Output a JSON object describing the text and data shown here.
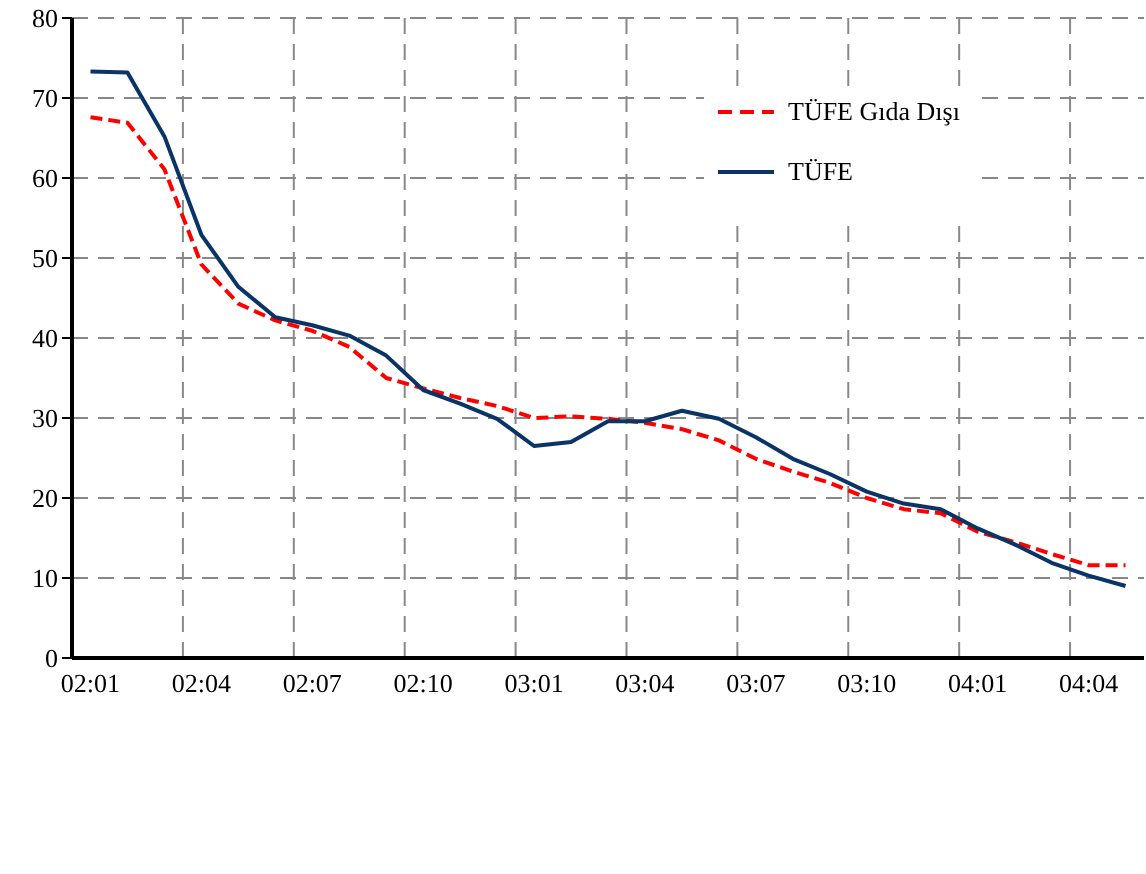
{
  "chart_data": {
    "type": "line",
    "categories": [
      "02:01",
      null,
      null,
      "02:04",
      null,
      null,
      "02:07",
      null,
      null,
      "02:10",
      null,
      null,
      "03:01",
      null,
      null,
      "03:04",
      null,
      null,
      "03:07",
      null,
      null,
      "03:10",
      null,
      null,
      "04:01",
      null,
      null,
      "04:04",
      null
    ],
    "series": [
      {
        "name": "TÜFE Gıda Dışı",
        "color": "#ff0000",
        "line_style": "dashed",
        "values": [
          67.6,
          66.9,
          61.1,
          49.2,
          44.3,
          42.2,
          40.9,
          38.9,
          35.0,
          33.7,
          32.5,
          31.5,
          30.0,
          30.2,
          29.9,
          29.4,
          28.6,
          27.2,
          24.9,
          23.3,
          21.9,
          20.0,
          18.6,
          18.1,
          15.8,
          14.5,
          13.0,
          11.6,
          11.6
        ]
      },
      {
        "name": "TÜFE",
        "color": "#0a3366",
        "line_style": "solid",
        "values": [
          73.3,
          73.2,
          65.2,
          52.9,
          46.4,
          42.6,
          41.6,
          40.3,
          37.8,
          33.5,
          31.8,
          29.9,
          26.5,
          27.0,
          29.6,
          29.6,
          30.9,
          29.9,
          27.6,
          24.9,
          23.0,
          20.8,
          19.3,
          18.6,
          16.2,
          14.2,
          11.9,
          10.3,
          9.0
        ]
      }
    ],
    "ylim": [
      0,
      80
    ],
    "yticks": [
      0,
      10,
      20,
      30,
      40,
      50,
      60,
      70,
      80
    ],
    "grid": true,
    "legend": "top right",
    "marker": "none"
  }
}
